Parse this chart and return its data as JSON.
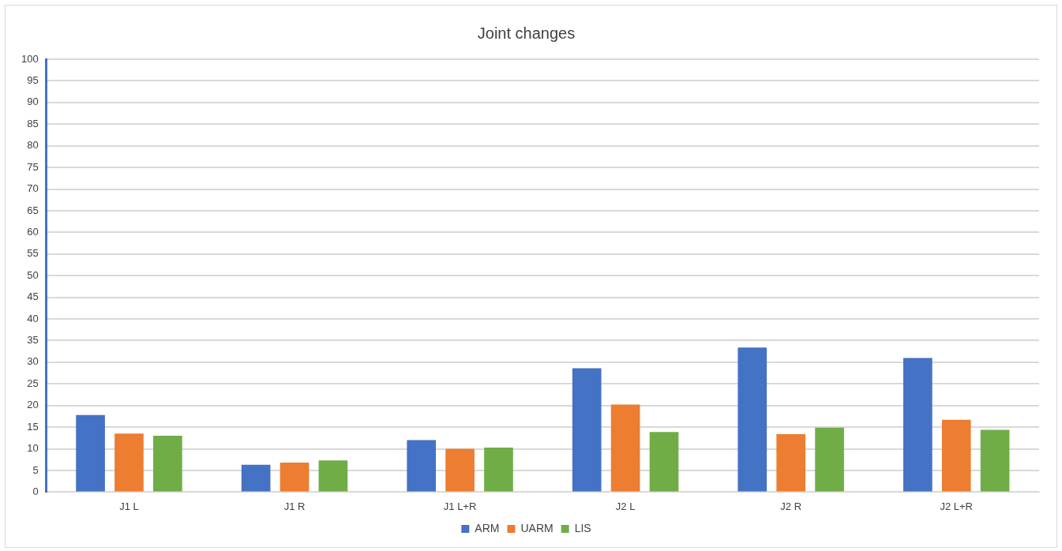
{
  "chart_data": {
    "type": "bar",
    "title": "Joint changes",
    "categories": [
      "J1 L",
      "J1 R",
      "J1 L+R",
      "J2 L",
      "J2 R",
      "J2 L+R"
    ],
    "series": [
      {
        "name": "ARM",
        "color": "#4472c4",
        "values": [
          17.8,
          6.3,
          12,
          28.6,
          33.4,
          31
        ]
      },
      {
        "name": "UARM",
        "color": "#ed7d31",
        "values": [
          13.5,
          6.8,
          10,
          20.2,
          13.4,
          16.7
        ]
      },
      {
        "name": "LIS",
        "color": "#70ad47",
        "values": [
          13,
          7.3,
          10.3,
          13.9,
          14.9,
          14.4
        ]
      }
    ],
    "ylim": [
      0,
      100
    ],
    "yticks": [
      0,
      5,
      10,
      15,
      20,
      25,
      30,
      35,
      40,
      45,
      50,
      55,
      60,
      65,
      70,
      75,
      80,
      85,
      90,
      95,
      100
    ],
    "grid": "y",
    "legend": "bottom"
  }
}
